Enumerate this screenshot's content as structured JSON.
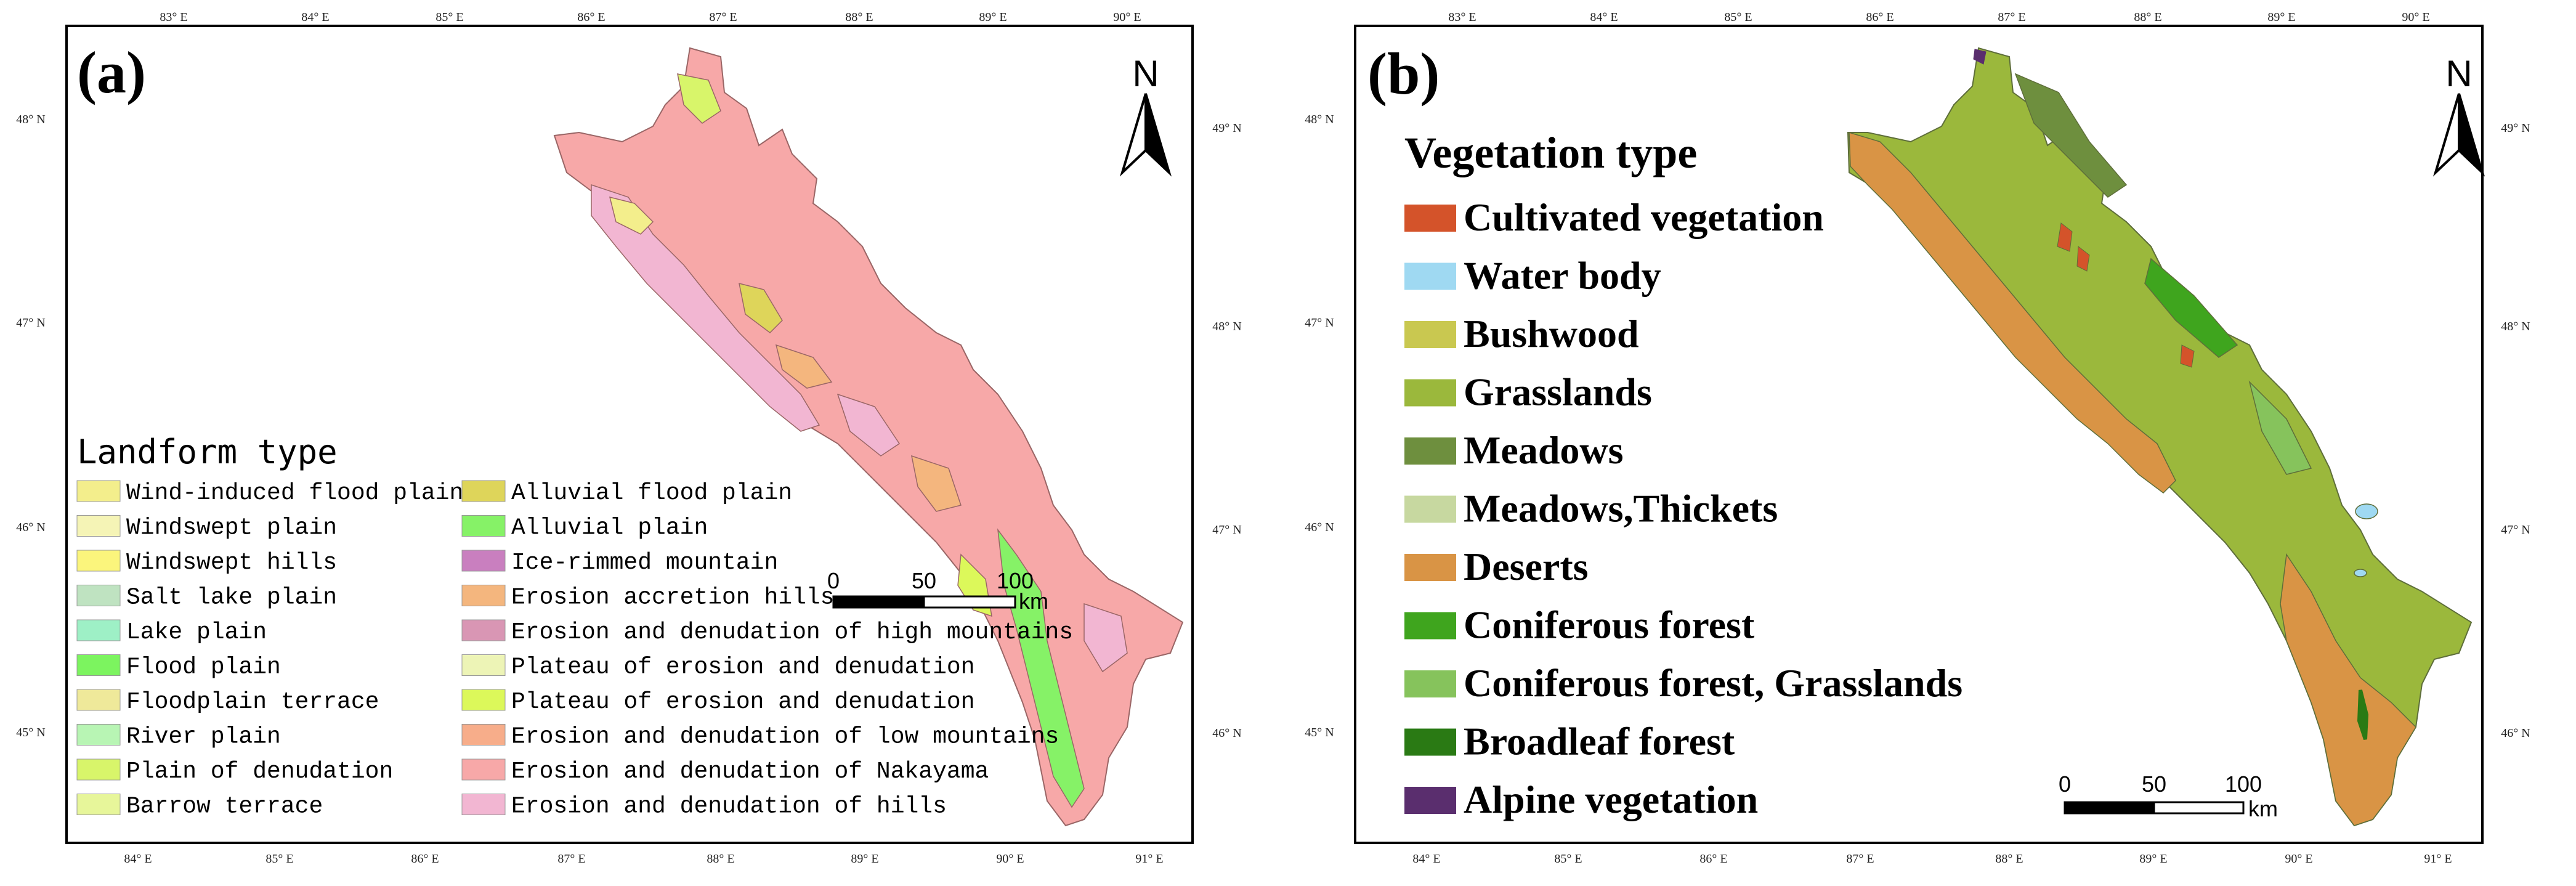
{
  "panel_a": {
    "label": "(a)",
    "legend_title": "Landform type",
    "north_label": "N",
    "scale": {
      "zero": "0",
      "mid": "50",
      "max": "100",
      "unit": "km"
    },
    "top_lon": [
      "83° E",
      "84° E",
      "85° E",
      "86° E",
      "87° E",
      "88° E",
      "89° E",
      "90° E"
    ],
    "bottom_lon": [
      "84° E",
      "85° E",
      "86° E",
      "87° E",
      "88° E",
      "89° E",
      "90° E",
      "91° E"
    ],
    "left_lat": [
      "48° N",
      "47° N",
      "46° N",
      "45° N"
    ],
    "right_lat": [
      "49° N",
      "48° N",
      "47° N",
      "46° N"
    ],
    "legend_items": [
      {
        "label": "Wind-induced flood plain",
        "color": "#f3ee8c"
      },
      {
        "label": "Windswept plain",
        "color": "#f5f4b6"
      },
      {
        "label": "Windswept hills",
        "color": "#fbf57c"
      },
      {
        "label": "Salt lake plain",
        "color": "#bfe3c1"
      },
      {
        "label": "Lake plain",
        "color": "#9ef0c6"
      },
      {
        "label": "Flood plain",
        "color": "#7cf45f"
      },
      {
        "label": "Floodplain terrace",
        "color": "#efe99a"
      },
      {
        "label": "River plain",
        "color": "#b8f5b4"
      },
      {
        "label": "Plain of denudation",
        "color": "#d8f56a"
      },
      {
        "label": "Barrow terrace",
        "color": "#e7f69a"
      },
      {
        "label": "Alluvial flood plain",
        "color": "#ded55a"
      },
      {
        "label": "Alluvial plain",
        "color": "#86f267"
      },
      {
        "label": "Ice-rimmed mountain",
        "color": "#c97fbf"
      },
      {
        "label": "Erosion accretion hills",
        "color": "#f4b67e"
      },
      {
        "label": "Erosion and denudation of high mountains",
        "color": "#d996b4"
      },
      {
        "label": "Plateau of erosion and denudation",
        "color": "#edf4b6"
      },
      {
        "label": "Plateau of erosion and denudation",
        "color": "#dcf85a"
      },
      {
        "label": "Erosion and denudation of low mountains",
        "color": "#f7ad8a"
      },
      {
        "label": "Erosion and denudation of Nakayama",
        "color": "#f7a8a8"
      },
      {
        "label": "Erosion and denudation of hills",
        "color": "#f2b6d2"
      }
    ]
  },
  "panel_b": {
    "label": "(b)",
    "legend_title": "Vegetation type",
    "north_label": "N",
    "scale": {
      "zero": "0",
      "mid": "50",
      "max": "100",
      "unit": "km"
    },
    "top_lon": [
      "83° E",
      "84° E",
      "85° E",
      "86° E",
      "87° E",
      "88° E",
      "89° E",
      "90° E"
    ],
    "bottom_lon": [
      "84° E",
      "85° E",
      "86° E",
      "87° E",
      "88° E",
      "89° E",
      "90° E",
      "91° E"
    ],
    "left_lat": [
      "48° N",
      "47° N",
      "46° N",
      "45° N"
    ],
    "right_lat": [
      "49° N",
      "48° N",
      "47° N",
      "46° N"
    ],
    "legend_items": [
      {
        "label": "Cultivated vegetation",
        "color": "#d4532a"
      },
      {
        "label": "Water body",
        "color": "#9fd9f2"
      },
      {
        "label": "Bushwood",
        "color": "#c9c850"
      },
      {
        "label": "Grasslands",
        "color": "#9bb83c"
      },
      {
        "label": "Meadows",
        "color": "#6e8f3e"
      },
      {
        "label": "Meadows,Thickets",
        "color": "#c7d8a0"
      },
      {
        "label": "Deserts",
        "color": "#d99445"
      },
      {
        "label": "Coniferous forest",
        "color": "#3fa51e"
      },
      {
        "label": "Coniferous forest, Grasslands",
        "color": "#86c35c"
      },
      {
        "label": "Broadleaf forest",
        "color": "#2a7a14"
      },
      {
        "label": "Alpine vegetation",
        "color": "#5a2e6e"
      }
    ]
  }
}
